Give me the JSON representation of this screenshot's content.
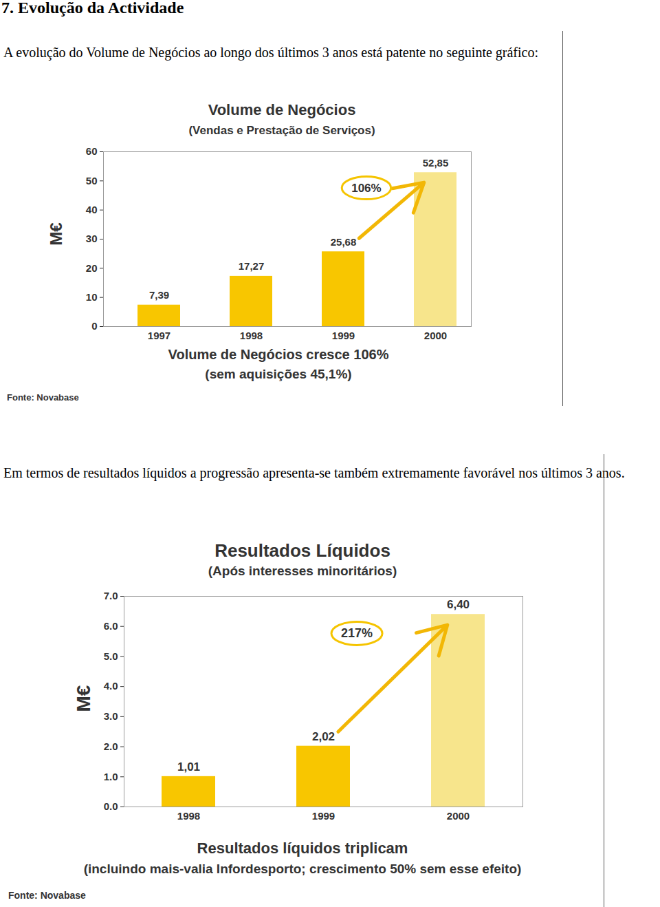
{
  "section_title": "7. Evolução da Actividade",
  "paragraphs": [
    "A evolução do Volume de Negócios ao longo dos últimos 3 anos está patente no seguinte gráfico:",
    "Em termos de resultados líquidos a progressão apresenta-se também extremamente favorável nos últimos 3 anos."
  ],
  "chart_data": [
    {
      "type": "bar",
      "title": "Volume de Negócios",
      "subtitle": "(Vendas e Prestação de Serviços)",
      "ylabel": "M€",
      "categories": [
        "1997",
        "1998",
        "1999",
        "2000"
      ],
      "values": [
        7.39,
        17.27,
        25.68,
        52.85
      ],
      "value_labels": [
        "7,39",
        "17,27",
        "25,68",
        "52,85"
      ],
      "colors": [
        "#f8c600",
        "#f8c600",
        "#f8c600",
        "#f7e58c"
      ],
      "ylim": [
        0,
        60
      ],
      "yticks": [
        0,
        10,
        20,
        30,
        40,
        50,
        60
      ],
      "data_labels": true,
      "annotations": [
        {
          "text": "106%"
        }
      ],
      "caption": [
        "Volume de Negócios cresce 106%",
        "(sem aquisições 45,1%)"
      ],
      "source": "Fonte: Novabase"
    },
    {
      "type": "bar",
      "title": "Resultados Líquidos",
      "subtitle": "(Após interesses minoritários)",
      "ylabel": "M€",
      "categories": [
        "1998",
        "1999",
        "2000"
      ],
      "values": [
        1.01,
        2.02,
        6.4
      ],
      "value_labels": [
        "1,01",
        "2,02",
        "6,40"
      ],
      "colors": [
        "#f8c600",
        "#f8c600",
        "#f7e58c"
      ],
      "ylim": [
        0,
        7
      ],
      "yticks": [
        0,
        1,
        2,
        3,
        4,
        5,
        6,
        7
      ],
      "data_labels": true,
      "annotations": [
        {
          "text": "217%"
        }
      ],
      "caption": [
        "Resultados líquidos triplicam",
        "(incluindo mais-valia Infordesporto; crescimento 50% sem esse efeito)"
      ],
      "source": "Fonte: Novabase"
    }
  ]
}
